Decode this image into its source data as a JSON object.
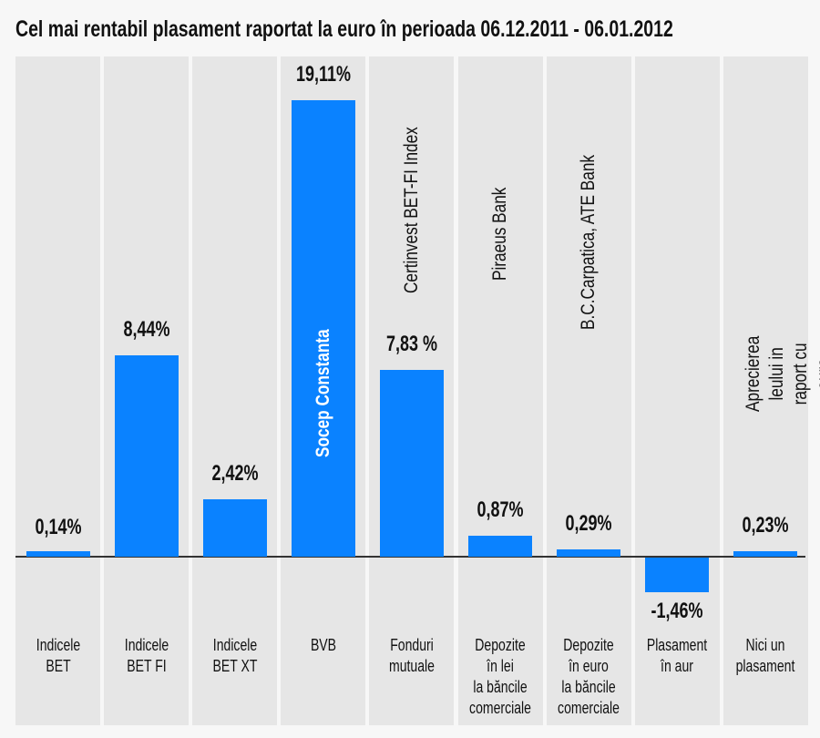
{
  "chart_data": {
    "type": "bar",
    "title": "Cel mai rentabil plasament raportat la euro în perioada 06.12.2011 - 06.01.2012",
    "xlabel": "",
    "ylabel": "",
    "ylim": [
      -3,
      20
    ],
    "grid": false,
    "bar_color": "#0a82ff",
    "categories": [
      "Indicele\nBET",
      "Indicele\nBET FI",
      "Indicele\nBET XT",
      "BVB",
      "Fonduri\nmutuale",
      "Depozite\nîn lei\nla băncile\ncomerciale",
      "Depozite\nîn euro\nla băncile\ncomerciale",
      "Plasament\nîn aur",
      "Nici un\nplasament"
    ],
    "values": [
      0.14,
      8.44,
      2.42,
      19.11,
      7.83,
      0.87,
      0.29,
      -1.46,
      0.23
    ],
    "data_labels": [
      "0,14%",
      "8,44%",
      "2,42%",
      "19,11%",
      "7,83 %",
      "0,87%",
      "0,29%",
      "-1,46%",
      "0,23%"
    ],
    "annotations": [
      "",
      "",
      "",
      "Socep Constanta",
      "Certinvest BET-FI Index",
      "Piraeus Bank",
      "B.C.Carpatica, ATE Bank",
      "",
      "Aprecierea leului in\nraport cu euro"
    ]
  }
}
